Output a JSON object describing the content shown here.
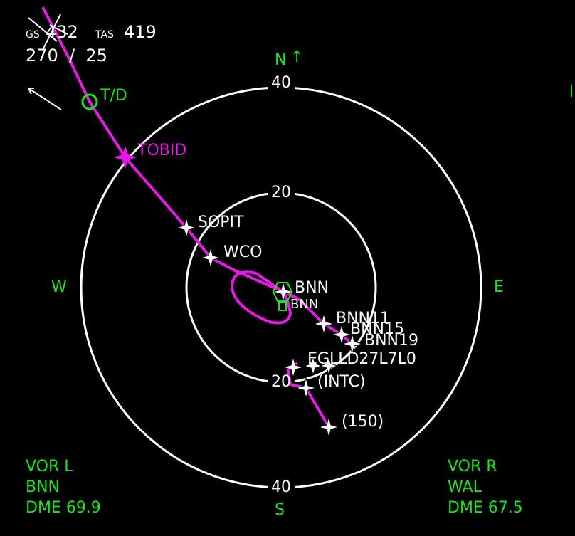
{
  "header": {
    "gs_label": "GS",
    "gs_value": "432",
    "tas_label": "TAS",
    "tas_value": "419",
    "wind": "270  /  25"
  },
  "compass": {
    "north": "N",
    "south": "S",
    "east": "E",
    "west": "W",
    "north_arrow": "↑"
  },
  "range_rings": {
    "outer_top": "40",
    "outer_bottom": "40",
    "inner_top": "20",
    "inner_bottom": "20"
  },
  "waypoints": {
    "td": "T/D",
    "tobid": "TOBID",
    "sopit": "SOPIT",
    "wco": "WCO",
    "bnn_main": "BNN",
    "bnn_sub": "BNN",
    "bnn11": "BNN11",
    "bnn15": "BNN15",
    "bnn19": "BNN19",
    "eglld": "EGLLD27L7L0",
    "intc": "(INTC)",
    "alt150": "(150)"
  },
  "vor_left": {
    "title": "VOR L",
    "station": "BNN",
    "dme": "DME 69.9"
  },
  "vor_right": {
    "title": "VOR R",
    "station": "WAL",
    "dme": "DME 67.5"
  },
  "colors": {
    "route": "#e619e6",
    "label": "#19e619",
    "ring": "#ffffff",
    "background": "#000000"
  }
}
